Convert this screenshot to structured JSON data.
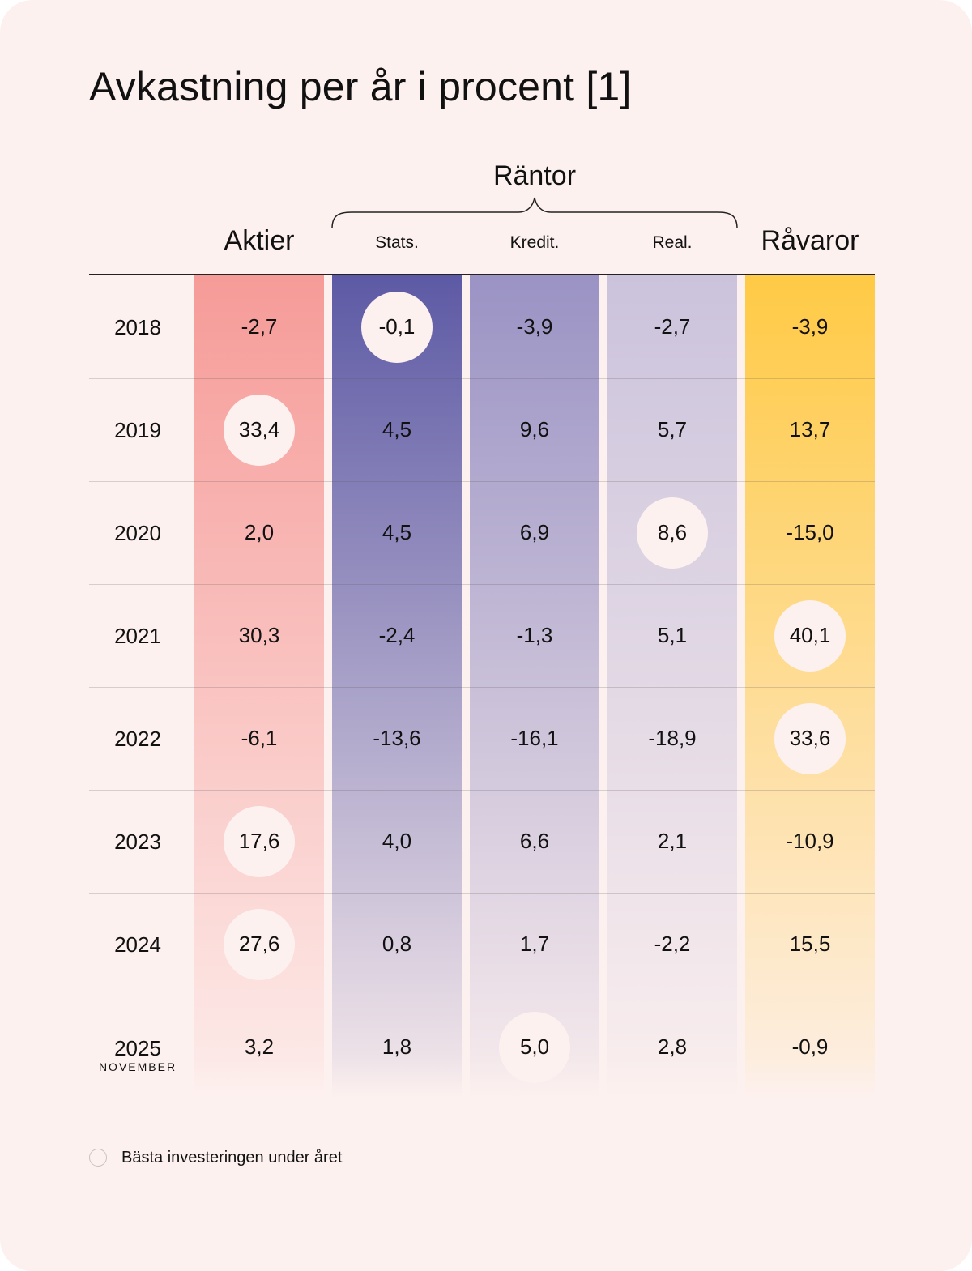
{
  "chart_data": {
    "type": "table",
    "title": "Avkastning per år i procent [1]",
    "group_label": "Räntor",
    "columns": [
      {
        "key": "aktier",
        "label": "Aktier",
        "size": "big",
        "color": "#f69b98"
      },
      {
        "key": "stats",
        "label": "Stats.",
        "size": "small",
        "color": "#5d5aa5"
      },
      {
        "key": "kredit",
        "label": "Kredit.",
        "size": "small",
        "color": "#9a93c4"
      },
      {
        "key": "real",
        "label": "Real.",
        "size": "small",
        "color": "#cbc3dc"
      },
      {
        "key": "ravaror",
        "label": "Råvaror",
        "size": "big",
        "color": "#ffca45"
      }
    ],
    "rows": [
      {
        "year": "2018",
        "sub": "",
        "values": [
          "-2,7",
          "-0,1",
          "-3,9",
          "-2,7",
          "-3,9"
        ],
        "best": 1
      },
      {
        "year": "2019",
        "sub": "",
        "values": [
          "33,4",
          "4,5",
          "9,6",
          "5,7",
          "13,7"
        ],
        "best": 0
      },
      {
        "year": "2020",
        "sub": "",
        "values": [
          "2,0",
          "4,5",
          "6,9",
          "8,6",
          "-15,0"
        ],
        "best": 3
      },
      {
        "year": "2021",
        "sub": "",
        "values": [
          "30,3",
          "-2,4",
          "-1,3",
          "5,1",
          "40,1"
        ],
        "best": 4
      },
      {
        "year": "2022",
        "sub": "",
        "values": [
          "-6,1",
          "-13,6",
          "-16,1",
          "-18,9",
          "33,6"
        ],
        "best": 4
      },
      {
        "year": "2023",
        "sub": "",
        "values": [
          "17,6",
          "4,0",
          "6,6",
          "2,1",
          "-10,9"
        ],
        "best": 0
      },
      {
        "year": "2024",
        "sub": "",
        "values": [
          "27,6",
          "0,8",
          "1,7",
          "-2,2",
          "15,5"
        ],
        "best": 0
      },
      {
        "year": "2025",
        "sub": "NOVEMBER",
        "values": [
          "3,2",
          "1,8",
          "5,0",
          "2,8",
          "-0,9"
        ],
        "best": 2
      }
    ],
    "legend": "Bästa investeringen under året"
  }
}
